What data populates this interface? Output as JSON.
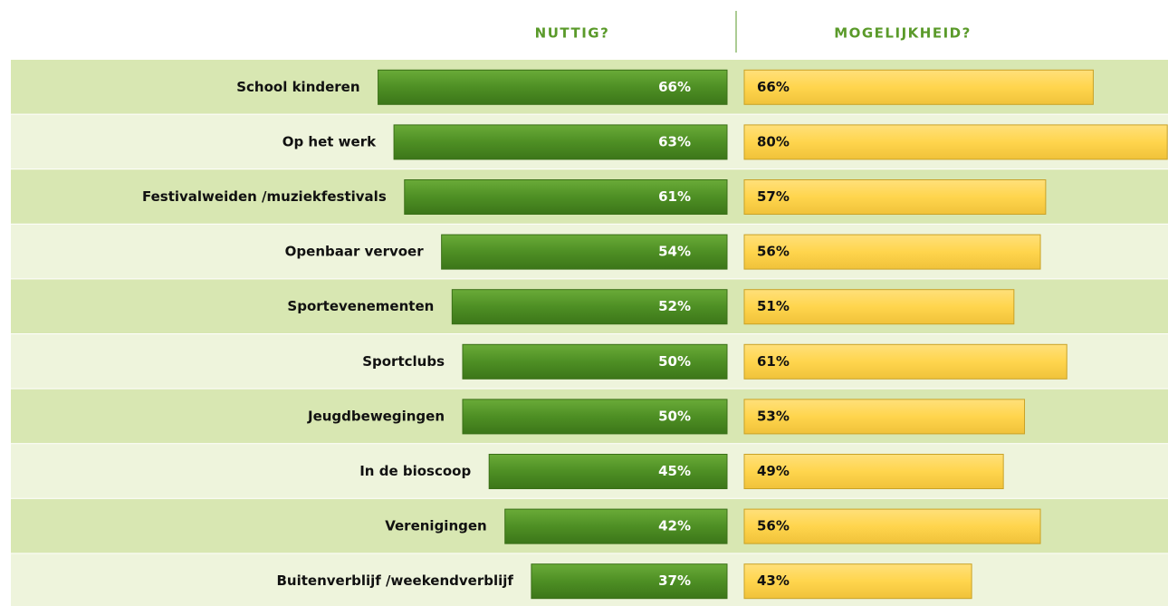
{
  "chart_data": {
    "type": "butterfly-bar",
    "categories": [
      "School kinderen",
      "Op het werk",
      "Festivalweiden /muziekfestivals",
      "Openbaar vervoer",
      "Sportevenementen",
      "Sportclubs",
      "Jeugdbewegingen",
      "In de bioscoop",
      "Verenigingen",
      "Buitenverblijf /weekendverblijf"
    ],
    "series": [
      {
        "name": "NUTTIG?",
        "color": "#4e8f24",
        "values": [
          66,
          63,
          61,
          54,
          52,
          50,
          50,
          45,
          42,
          37
        ],
        "value_labels": [
          "66%",
          "63%",
          "61%",
          "54%",
          "52%",
          "50%",
          "50%",
          "45%",
          "42%",
          "37%"
        ]
      },
      {
        "name": "MOGELIJKHEID?",
        "color": "#ffd54d",
        "values": [
          66,
          80,
          57,
          56,
          51,
          61,
          53,
          49,
          56,
          43
        ],
        "value_labels": [
          "66%",
          "80%",
          "57%",
          "56%",
          "51%",
          "61%",
          "53%",
          "49%",
          "56%",
          "43%"
        ]
      }
    ]
  }
}
